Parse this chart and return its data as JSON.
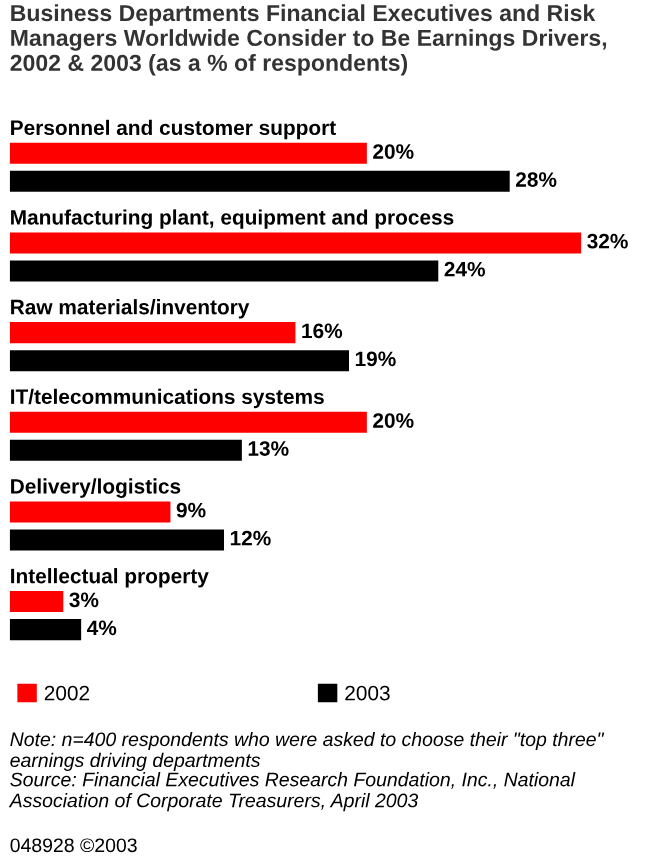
{
  "chart_data": {
    "type": "bar",
    "orientation": "horizontal",
    "title": "Business Departments Financial Executives and Risk Managers Worldwide Consider to Be Earnings Drivers, 2002 & 2003 (as a % of respondents)",
    "categories": [
      "Personnel and customer support",
      "Manufacturing plant, equipment and process",
      "Raw materials/inventory",
      "IT/telecommunications systems",
      "Delivery/logistics",
      "Intellectual property"
    ],
    "series": [
      {
        "name": "2002",
        "color": "#ff0000",
        "values": [
          20,
          32,
          16,
          20,
          9,
          3
        ],
        "value_labels": [
          "20%",
          "32%",
          "16%",
          "20%",
          "9%",
          "3%"
        ]
      },
      {
        "name": "2003",
        "color": "#000000",
        "values": [
          28,
          24,
          19,
          13,
          12,
          4
        ],
        "value_labels": [
          "28%",
          "24%",
          "19%",
          "13%",
          "12%",
          "4%"
        ]
      }
    ],
    "legend": "bottom",
    "annotations": [
      "Note: n=400 respondents who were asked to choose their \"top three\" earnings driving departments",
      "Source: Financial Executives Research Foundation, Inc., National Association of Corporate Treasurers, April 2003",
      "048928 ©2003"
    ]
  }
}
